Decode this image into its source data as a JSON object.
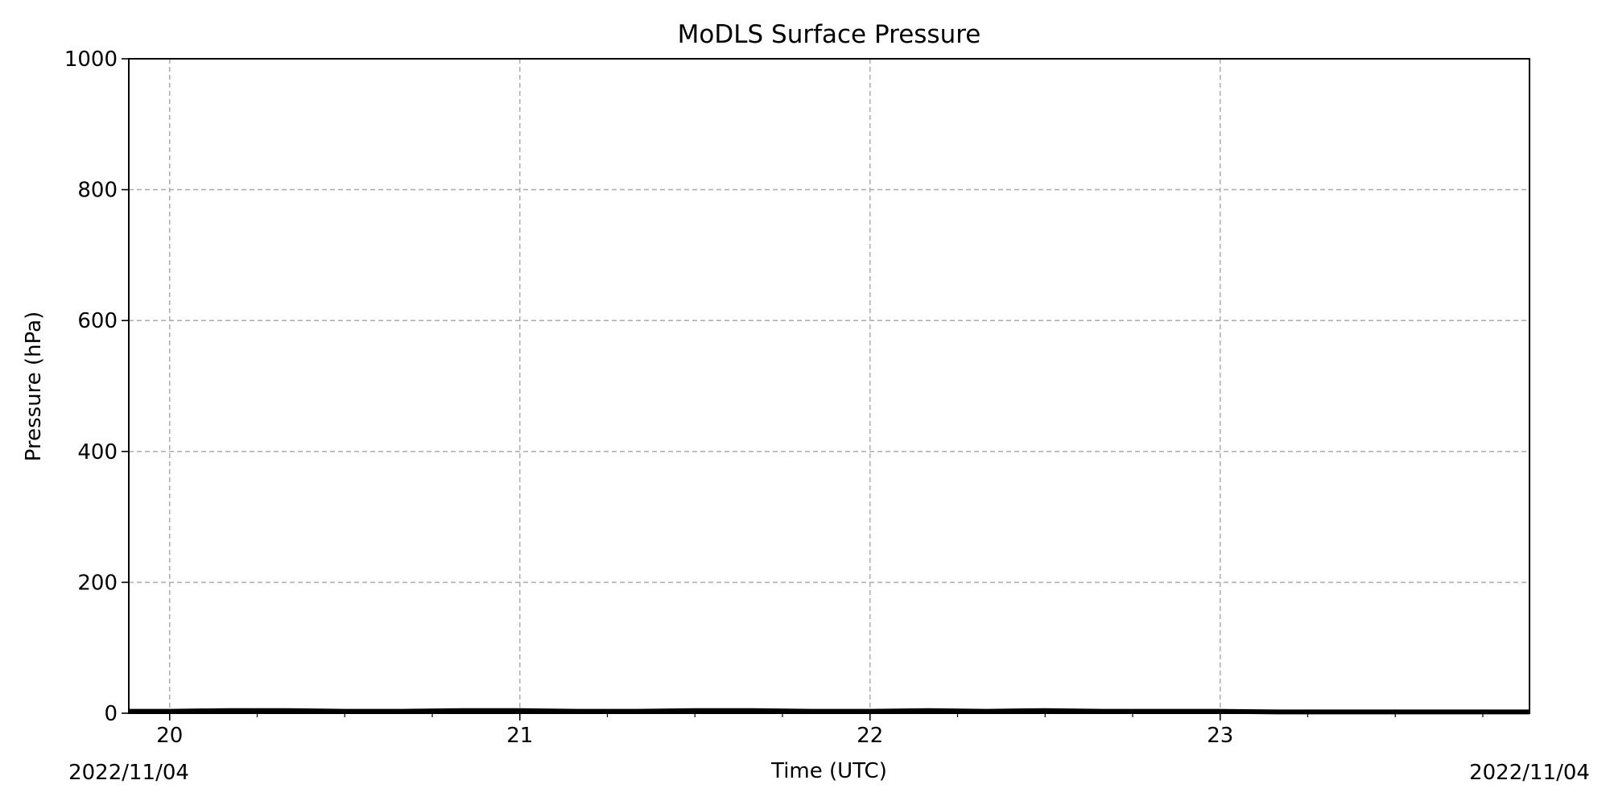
{
  "chart_data": {
    "type": "line",
    "title": "MoDLS Surface Pressure",
    "xlabel": "Time (UTC)",
    "ylabel": "Pressure (hPa)",
    "xlim": [
      "2022-11-04 19:53",
      "2022-11-04 23:53"
    ],
    "ylim": [
      0,
      1000
    ],
    "x_ticks": [
      {
        "x": "2022-11-04 20:00",
        "label": "20"
      },
      {
        "x": "2022-11-04 21:00",
        "label": "21"
      },
      {
        "x": "2022-11-04 22:00",
        "label": "22"
      },
      {
        "x": "2022-11-04 23:00",
        "label": "23"
      }
    ],
    "y_ticks": [
      0,
      200,
      400,
      600,
      800,
      1000
    ],
    "date_labels": {
      "start": "2022/11/04",
      "end": "2022/11/04"
    },
    "grid": true,
    "series": [
      {
        "color": "#000000",
        "x": [
          "2022-11-04 19:53",
          "2022-11-04 20:00",
          "2022-11-04 20:10",
          "2022-11-04 20:20",
          "2022-11-04 20:30",
          "2022-11-04 20:40",
          "2022-11-04 20:50",
          "2022-11-04 21:00",
          "2022-11-04 21:10",
          "2022-11-04 21:20",
          "2022-11-04 21:30",
          "2022-11-04 21:40",
          "2022-11-04 21:50",
          "2022-11-04 22:00",
          "2022-11-04 22:10",
          "2022-11-04 22:20",
          "2022-11-04 22:30",
          "2022-11-04 22:40",
          "2022-11-04 22:50",
          "2022-11-04 23:00",
          "2022-11-04 23:10",
          "2022-11-04 23:20",
          "2022-11-04 23:30",
          "2022-11-04 23:40",
          "2022-11-04 23:53"
        ],
        "y": [
          3,
          3,
          4,
          4,
          3,
          3,
          4,
          4,
          3,
          3,
          4,
          4,
          3,
          3,
          4,
          3,
          4,
          3,
          3,
          3,
          2,
          2,
          2,
          2,
          2
        ]
      }
    ]
  }
}
